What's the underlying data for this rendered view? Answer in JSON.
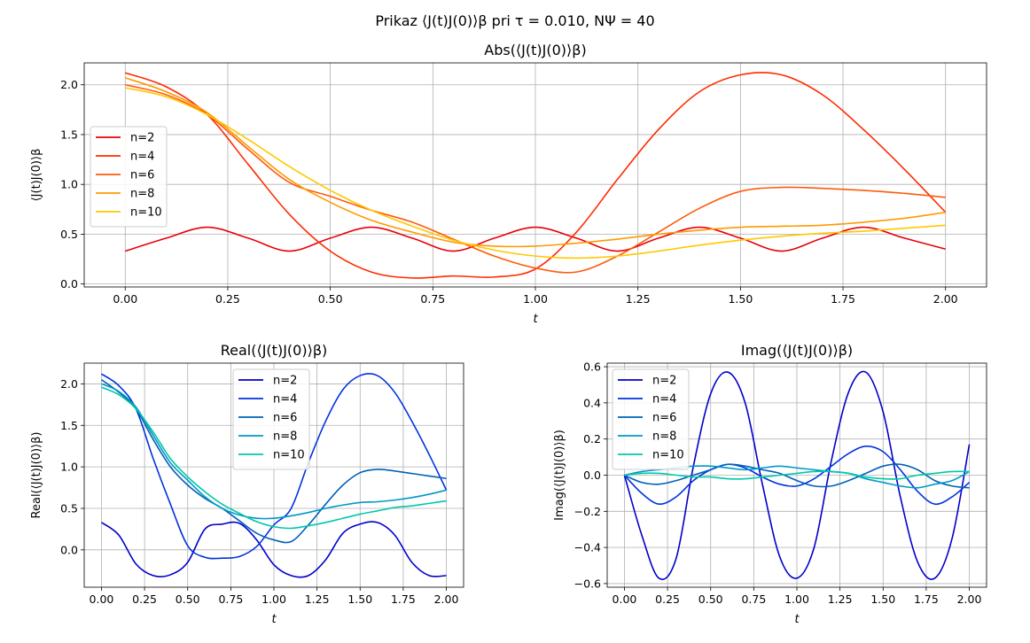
{
  "figure": {
    "suptitle": "Prikaz ⟨J(t)J(0)⟩β pri τ = 0.010, NΨ = 40"
  },
  "chart_data": [
    {
      "type": "line",
      "title": "Abs(⟨J(t)J(0)⟩β)",
      "xlabel": "t",
      "ylabel": "⟨J(t)J(0)⟩β",
      "xlim": [
        -0.1,
        2.1
      ],
      "ylim": [
        -0.03,
        2.22
      ],
      "xticks": [
        "0.00",
        "0.25",
        "0.50",
        "0.75",
        "1.00",
        "1.25",
        "1.50",
        "1.75",
        "2.00"
      ],
      "yticks": [
        "0.0",
        "0.5",
        "1.0",
        "1.5",
        "2.0"
      ],
      "grid": true,
      "legend_position": "center-left",
      "x": [
        0,
        0.1,
        0.2,
        0.3,
        0.4,
        0.5,
        0.6,
        0.7,
        0.8,
        0.9,
        1.0,
        1.1,
        1.2,
        1.3,
        1.4,
        1.5,
        1.6,
        1.7,
        1.8,
        1.9,
        2.0
      ],
      "series": [
        {
          "name": "n=2",
          "color": "#e8000b",
          "values": [
            0.33,
            0.46,
            0.57,
            0.46,
            0.33,
            0.46,
            0.57,
            0.46,
            0.33,
            0.46,
            0.57,
            0.46,
            0.33,
            0.46,
            0.57,
            0.46,
            0.33,
            0.46,
            0.57,
            0.46,
            0.35
          ]
        },
        {
          "name": "n=4",
          "color": "#ff2a00",
          "values": [
            2.12,
            1.98,
            1.7,
            1.2,
            0.7,
            0.33,
            0.12,
            0.06,
            0.08,
            0.07,
            0.15,
            0.52,
            1.05,
            1.55,
            1.93,
            2.1,
            2.1,
            1.9,
            1.55,
            1.15,
            0.72
          ]
        },
        {
          "name": "n=6",
          "color": "#ff5a0a",
          "values": [
            2.0,
            1.9,
            1.7,
            1.35,
            1.02,
            0.88,
            0.74,
            0.62,
            0.45,
            0.28,
            0.16,
            0.12,
            0.28,
            0.52,
            0.76,
            0.93,
            0.97,
            0.96,
            0.94,
            0.91,
            0.87
          ]
        },
        {
          "name": "n=8",
          "color": "#ff9a00",
          "values": [
            2.07,
            1.93,
            1.72,
            1.38,
            1.05,
            0.82,
            0.64,
            0.52,
            0.42,
            0.38,
            0.38,
            0.41,
            0.45,
            0.5,
            0.54,
            0.57,
            0.58,
            0.59,
            0.62,
            0.66,
            0.72
          ]
        },
        {
          "name": "n=10",
          "color": "#ffc800",
          "values": [
            1.97,
            1.88,
            1.7,
            1.45,
            1.18,
            0.94,
            0.74,
            0.58,
            0.44,
            0.34,
            0.28,
            0.26,
            0.28,
            0.33,
            0.39,
            0.44,
            0.48,
            0.51,
            0.53,
            0.56,
            0.59
          ]
        }
      ]
    },
    {
      "type": "line",
      "title": "Real(⟨J(t)J(0)⟩β)",
      "xlabel": "t",
      "ylabel": "Real(⟨J(t)J(0)⟩β)",
      "xlim": [
        -0.1,
        2.1
      ],
      "ylim": [
        -0.45,
        2.25
      ],
      "xticks": [
        "0.00",
        "0.25",
        "0.50",
        "0.75",
        "1.00",
        "1.25",
        "1.50",
        "1.75",
        "2.00"
      ],
      "yticks": [
        "0.0",
        "0.5",
        "1.0",
        "1.5",
        "2.0"
      ],
      "grid": true,
      "legend_position": "top-center",
      "x": [
        0,
        0.1,
        0.2,
        0.3,
        0.4,
        0.5,
        0.6,
        0.7,
        0.8,
        0.9,
        1.0,
        1.1,
        1.2,
        1.3,
        1.4,
        1.5,
        1.6,
        1.7,
        1.8,
        1.9,
        2.0
      ],
      "series": [
        {
          "name": "n=2",
          "color": "#0000cc",
          "values": [
            0.33,
            0.18,
            -0.17,
            -0.31,
            -0.3,
            -0.15,
            0.25,
            0.31,
            0.32,
            0.12,
            -0.18,
            -0.31,
            -0.31,
            -0.12,
            0.2,
            0.31,
            0.33,
            0.18,
            -0.15,
            -0.31,
            -0.31
          ]
        },
        {
          "name": "n=4",
          "color": "#0033dd",
          "values": [
            2.12,
            1.98,
            1.7,
            1.1,
            0.55,
            0.05,
            -0.09,
            -0.1,
            -0.08,
            0.04,
            0.3,
            0.5,
            1.05,
            1.55,
            1.93,
            2.1,
            2.1,
            1.9,
            1.55,
            1.15,
            0.72
          ]
        },
        {
          "name": "n=6",
          "color": "#0060b8",
          "values": [
            2.05,
            1.9,
            1.7,
            1.33,
            1.0,
            0.78,
            0.62,
            0.5,
            0.35,
            0.2,
            0.12,
            0.1,
            0.3,
            0.55,
            0.78,
            0.93,
            0.97,
            0.95,
            0.92,
            0.89,
            0.86
          ]
        },
        {
          "name": "n=8",
          "color": "#0098c8",
          "values": [
            2.0,
            1.91,
            1.72,
            1.38,
            1.05,
            0.84,
            0.64,
            0.5,
            0.42,
            0.38,
            0.38,
            0.41,
            0.45,
            0.5,
            0.54,
            0.57,
            0.58,
            0.6,
            0.63,
            0.67,
            0.72
          ]
        },
        {
          "name": "n=10",
          "color": "#00c8a8",
          "values": [
            1.96,
            1.87,
            1.7,
            1.42,
            1.1,
            0.88,
            0.7,
            0.55,
            0.44,
            0.34,
            0.28,
            0.26,
            0.29,
            0.33,
            0.38,
            0.43,
            0.47,
            0.51,
            0.53,
            0.56,
            0.59
          ]
        }
      ]
    },
    {
      "type": "line",
      "title": "Imag(⟨J(t)J(0)⟩β)",
      "xlabel": "t",
      "ylabel": "Imag(⟨J(t)J(0)⟩β)",
      "xlim": [
        -0.1,
        2.1
      ],
      "ylim": [
        -0.62,
        0.62
      ],
      "xticks": [
        "0.00",
        "0.25",
        "0.50",
        "0.75",
        "1.00",
        "1.25",
        "1.50",
        "1.75",
        "2.00"
      ],
      "yticks": [
        "−0.6",
        "−0.4",
        "−0.2",
        "0.0",
        "0.2",
        "0.4",
        "0.6"
      ],
      "grid": true,
      "legend_position": "top-left",
      "x": [
        0,
        0.1,
        0.2,
        0.3,
        0.4,
        0.5,
        0.6,
        0.7,
        0.8,
        0.9,
        1.0,
        1.1,
        1.2,
        1.3,
        1.4,
        1.5,
        1.6,
        1.7,
        1.8,
        1.9,
        2.0
      ],
      "series": [
        {
          "name": "n=2",
          "color": "#0000cc",
          "values": [
            0.0,
            -0.33,
            -0.57,
            -0.46,
            0.05,
            0.45,
            0.57,
            0.4,
            -0.05,
            -0.45,
            -0.57,
            -0.4,
            0.08,
            0.46,
            0.57,
            0.35,
            -0.12,
            -0.48,
            -0.57,
            -0.35,
            0.17
          ]
        },
        {
          "name": "n=4",
          "color": "#0033dd",
          "values": [
            0.0,
            -0.1,
            -0.16,
            -0.12,
            -0.03,
            0.03,
            0.06,
            0.04,
            -0.01,
            -0.05,
            -0.06,
            -0.02,
            0.05,
            0.12,
            0.16,
            0.13,
            0.03,
            -0.09,
            -0.16,
            -0.12,
            -0.04
          ]
        },
        {
          "name": "n=6",
          "color": "#0060b8",
          "values": [
            0.0,
            -0.04,
            -0.05,
            -0.03,
            0.0,
            0.03,
            0.06,
            0.05,
            0.03,
            0.01,
            -0.03,
            -0.06,
            -0.06,
            -0.03,
            0.01,
            0.05,
            0.06,
            0.03,
            -0.03,
            -0.06,
            -0.07
          ]
        },
        {
          "name": "n=8",
          "color": "#0098c8",
          "values": [
            0.0,
            0.02,
            0.03,
            0.04,
            0.05,
            0.05,
            0.04,
            0.03,
            0.04,
            0.05,
            0.04,
            0.03,
            0.02,
            0.01,
            -0.02,
            -0.04,
            -0.06,
            -0.07,
            -0.05,
            -0.03,
            0.02
          ]
        },
        {
          "name": "n=10",
          "color": "#00c8a8",
          "values": [
            0.0,
            0.01,
            0.01,
            0.0,
            -0.01,
            -0.01,
            -0.02,
            -0.02,
            -0.01,
            0.0,
            0.01,
            0.02,
            0.02,
            0.01,
            -0.01,
            -0.02,
            -0.02,
            0.0,
            0.01,
            0.02,
            0.02
          ]
        }
      ]
    }
  ]
}
